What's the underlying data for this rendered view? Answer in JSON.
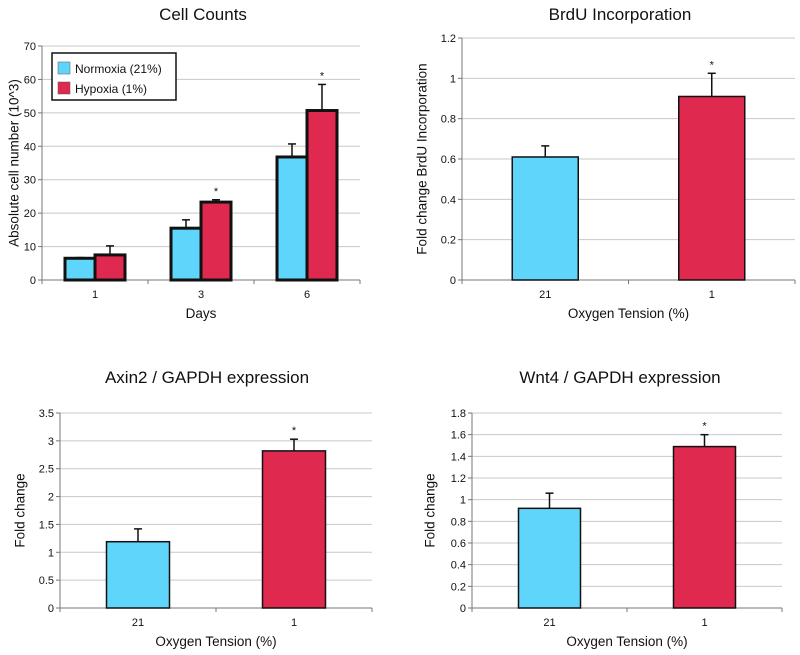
{
  "chart_data": [
    {
      "type": "bar",
      "title": "Cell Counts",
      "xlabel": "Days",
      "ylabel": "Absolute cell number (10^3)",
      "categories": [
        "1",
        "3",
        "6"
      ],
      "ylim": [
        0,
        70
      ],
      "yticks": [
        "0",
        "10",
        "20",
        "30",
        "40",
        "50",
        "60",
        "70"
      ],
      "grid": true,
      "legend_position": "top-left",
      "series": [
        {
          "name": "Normoxia (21%)",
          "color": "#5fd5fb",
          "values": [
            6.5,
            15.5,
            36.8
          ],
          "error_upper": [
            6.7,
            18.0,
            40.7
          ]
        },
        {
          "name": "Hypoxia (1%)",
          "color": "#e0294e",
          "values": [
            7.5,
            23.3,
            50.7
          ],
          "error_upper": [
            10.2,
            24.0,
            58.5
          ]
        }
      ],
      "significance": [
        [
          "",
          ""
        ],
        [
          "",
          "*"
        ],
        [
          "",
          "*"
        ]
      ]
    },
    {
      "type": "bar",
      "title": "BrdU Incorporation",
      "xlabel": "Oxygen Tension (%)",
      "ylabel": "Fold change BrdU Incorporation",
      "categories": [
        "21",
        "1"
      ],
      "ylim": [
        0,
        1.2
      ],
      "yticks": [
        "0",
        "0.2",
        "0.4",
        "0.6",
        "0.8",
        "1",
        "1.2"
      ],
      "grid": true,
      "values": [
        0.61,
        0.91
      ],
      "error_upper": [
        0.665,
        1.025
      ],
      "colors": [
        "#5fd5fb",
        "#e0294e"
      ],
      "significance": [
        "",
        "*"
      ]
    },
    {
      "type": "bar",
      "title": "Axin2 / GAPDH expression",
      "xlabel": "Oxygen Tension (%)",
      "ylabel": "Fold change",
      "categories": [
        "21",
        "1"
      ],
      "ylim": [
        0,
        3.5
      ],
      "yticks": [
        "0",
        "0.5",
        "1",
        "1.5",
        "2",
        "2.5",
        "3",
        "3.5"
      ],
      "grid": true,
      "values": [
        1.19,
        2.82
      ],
      "error_upper": [
        1.42,
        3.03
      ],
      "colors": [
        "#5fd5fb",
        "#e0294e"
      ],
      "significance": [
        "",
        "*"
      ]
    },
    {
      "type": "bar",
      "title": "Wnt4 / GAPDH expression",
      "xlabel": "Oxygen Tension (%)",
      "ylabel": "Fold change",
      "categories": [
        "21",
        "1"
      ],
      "ylim": [
        0,
        1.8
      ],
      "yticks": [
        "0",
        "0.2",
        "0.4",
        "0.6",
        "0.8",
        "1",
        "1.2",
        "1.4",
        "1.6",
        "1.8"
      ],
      "grid": true,
      "values": [
        0.92,
        1.49
      ],
      "error_upper": [
        1.06,
        1.6
      ],
      "colors": [
        "#5fd5fb",
        "#e0294e"
      ],
      "significance": [
        "",
        "*"
      ]
    }
  ]
}
